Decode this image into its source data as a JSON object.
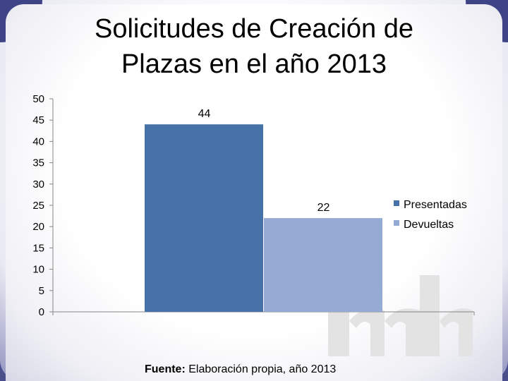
{
  "slide": {
    "title": "Solicitudes de Creación de\nPlazas en el año 2013",
    "source_label": "Fuente:",
    "source_text": " Elaboración propia, año 2013"
  },
  "colors": {
    "frame": "#4a4f8c",
    "presentadas": "#4672a8",
    "devueltas": "#95abd3"
  },
  "chart_data": {
    "type": "bar",
    "title": "Solicitudes de Creación de Plazas en el año 2013",
    "categories": [
      ""
    ],
    "series": [
      {
        "name": "Presentadas",
        "values": [
          44
        ],
        "color": "#4672a8"
      },
      {
        "name": "Devueltas",
        "values": [
          22
        ],
        "color": "#95abd3"
      }
    ],
    "ylim": [
      0,
      50
    ],
    "yticks": [
      0,
      5,
      10,
      15,
      20,
      25,
      30,
      35,
      40,
      45,
      50
    ],
    "xlabel": "",
    "ylabel": "",
    "grid": false,
    "legend_position": "right",
    "data_labels": [
      "44",
      "22"
    ]
  }
}
